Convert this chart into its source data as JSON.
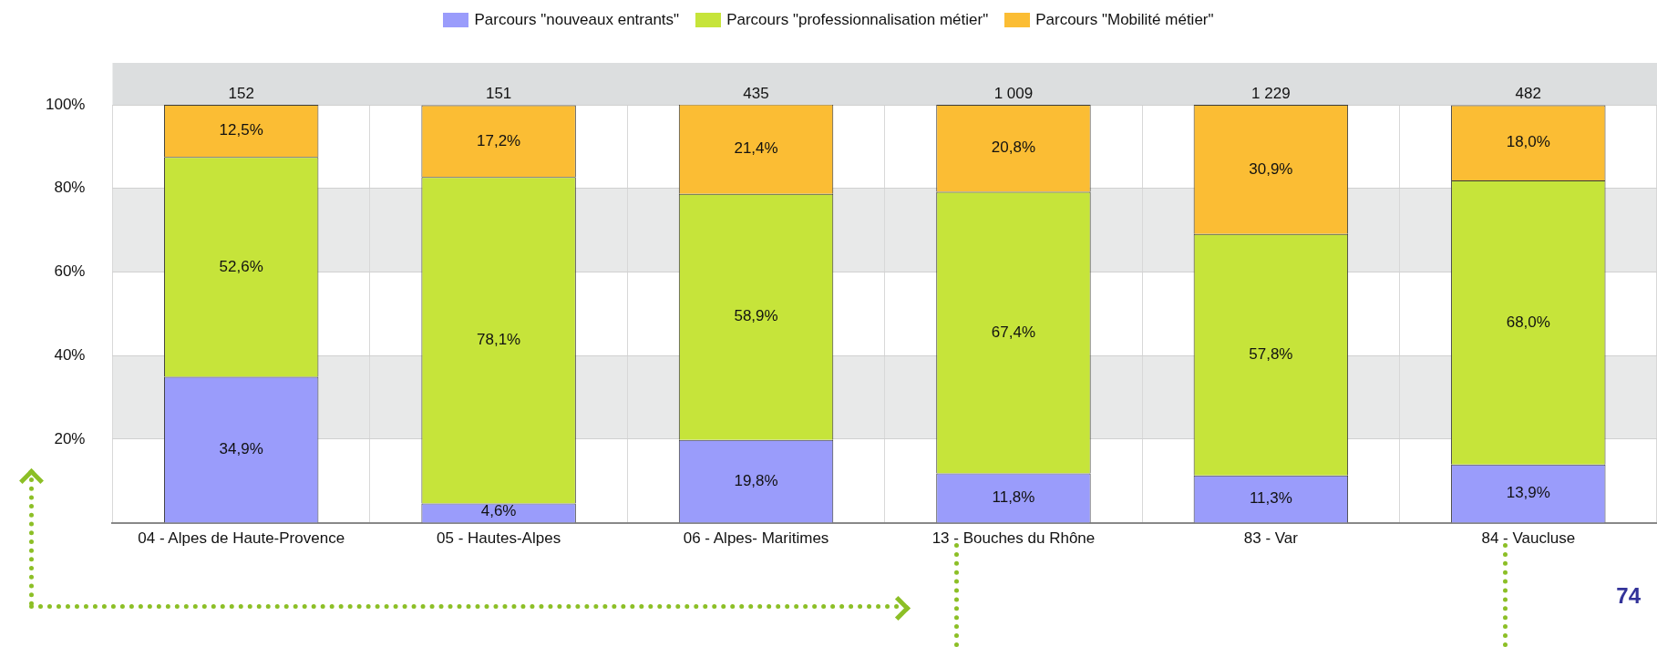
{
  "chart_data": {
    "type": "bar",
    "stacked": true,
    "categories": [
      "04 - Alpes de Haute-Provence",
      "05 - Hautes-Alpes",
      "06 - Alpes- Maritimes",
      "13 - Bouches du Rhône",
      "83 - Var",
      "84 - Vaucluse"
    ],
    "series": [
      {
        "name": "Parcours \"nouveaux entrants\"",
        "color": "#9a9cfb",
        "values": [
          34.9,
          4.6,
          19.8,
          11.8,
          11.3,
          13.9
        ],
        "value_labels": [
          "34,9%",
          "4,6%",
          "19,8%",
          "11,8%",
          "11,3%",
          "13,9%"
        ]
      },
      {
        "name": "Parcours \"professionnalisation métier\"",
        "color": "#c6e43a",
        "values": [
          52.6,
          78.1,
          58.9,
          67.4,
          57.8,
          68.0
        ],
        "value_labels": [
          "52,6%",
          "78,1%",
          "58,9%",
          "67,4%",
          "57,8%",
          "68,0%"
        ]
      },
      {
        "name": "Parcours \"Mobilité métier\"",
        "color": "#fbbd34",
        "values": [
          12.5,
          17.2,
          21.4,
          20.8,
          30.9,
          18.0
        ],
        "value_labels": [
          "12,5%",
          "17,2%",
          "21,4%",
          "20,8%",
          "30,9%",
          "18,0%"
        ]
      }
    ],
    "ylim": [
      0,
      100
    ],
    "yticks": [
      {
        "value": 20,
        "label": "20%"
      },
      {
        "value": 40,
        "label": "40%"
      },
      {
        "value": 60,
        "label": "60%"
      },
      {
        "value": 80,
        "label": "80%"
      },
      {
        "value": 100,
        "label": "100%"
      }
    ],
    "bands": [
      {
        "axis": "y",
        "from": 20,
        "to": 40,
        "color": "#e8e9e9"
      },
      {
        "axis": "y",
        "from": 60,
        "to": 80,
        "color": "#e8e9e9"
      }
    ],
    "grid": true,
    "legend": "top",
    "annotations": [
      "152",
      "151",
      "435",
      "1 009",
      "1 229",
      "482",
      "74"
    ]
  }
}
